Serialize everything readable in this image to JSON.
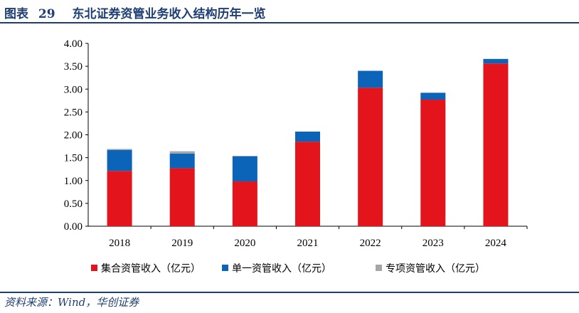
{
  "figure": {
    "label": "图表",
    "number": "29",
    "title": "东北证券资管业务收入结构历年一览"
  },
  "source": "资料来源：Wind，华创证券",
  "colors": {
    "primary": "#1f3f73"
  },
  "chart_data": {
    "type": "bar",
    "stacked": true,
    "categories": [
      "2018",
      "2019",
      "2020",
      "2021",
      "2022",
      "2023",
      "2024"
    ],
    "series": [
      {
        "name": "集合资管收入（亿元）",
        "color": "#e3141c",
        "values": [
          1.21,
          1.27,
          0.98,
          1.85,
          3.03,
          2.77,
          3.56
        ]
      },
      {
        "name": "单一资管收入（亿元）",
        "color": "#0b64b8",
        "values": [
          0.46,
          0.32,
          0.55,
          0.22,
          0.37,
          0.15,
          0.1
        ]
      },
      {
        "name": "专项资管收入（亿元）",
        "color": "#a6a6a6",
        "values": [
          0.02,
          0.05,
          0.01,
          0.0,
          0.0,
          0.0,
          0.0
        ]
      }
    ],
    "ylim": [
      0,
      4
    ],
    "yticks": [
      "0.00",
      "0.50",
      "1.00",
      "1.50",
      "2.00",
      "2.50",
      "3.00",
      "3.50",
      "4.00"
    ],
    "grid": false,
    "legend_position": "bottom"
  }
}
